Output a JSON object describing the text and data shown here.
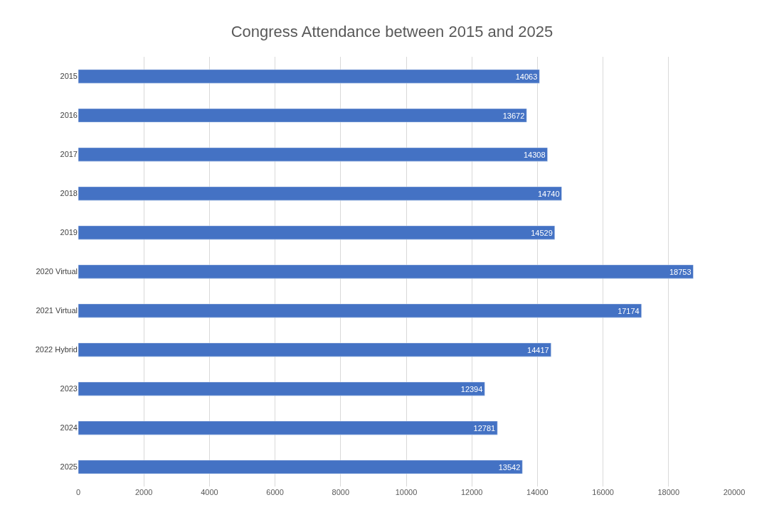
{
  "chart_data": {
    "type": "bar",
    "orientation": "horizontal",
    "title": "Congress Attendance between 2015 and 2025",
    "categories": [
      "2015",
      "2016",
      "2017",
      "2018",
      "2019",
      "2020 Virtual",
      "2021 Virtual",
      "2022 Hybrid",
      "2023",
      "2024",
      "2025"
    ],
    "values": [
      14063,
      13672,
      14308,
      14740,
      14529,
      18753,
      17174,
      14417,
      12394,
      12781,
      13542
    ],
    "color": "#4472c4",
    "data_labels": true,
    "grid": "x",
    "xlim": [
      0,
      20000
    ],
    "xticks": [
      0,
      2000,
      4000,
      6000,
      8000,
      10000,
      12000,
      14000,
      16000,
      18000,
      20000
    ]
  }
}
